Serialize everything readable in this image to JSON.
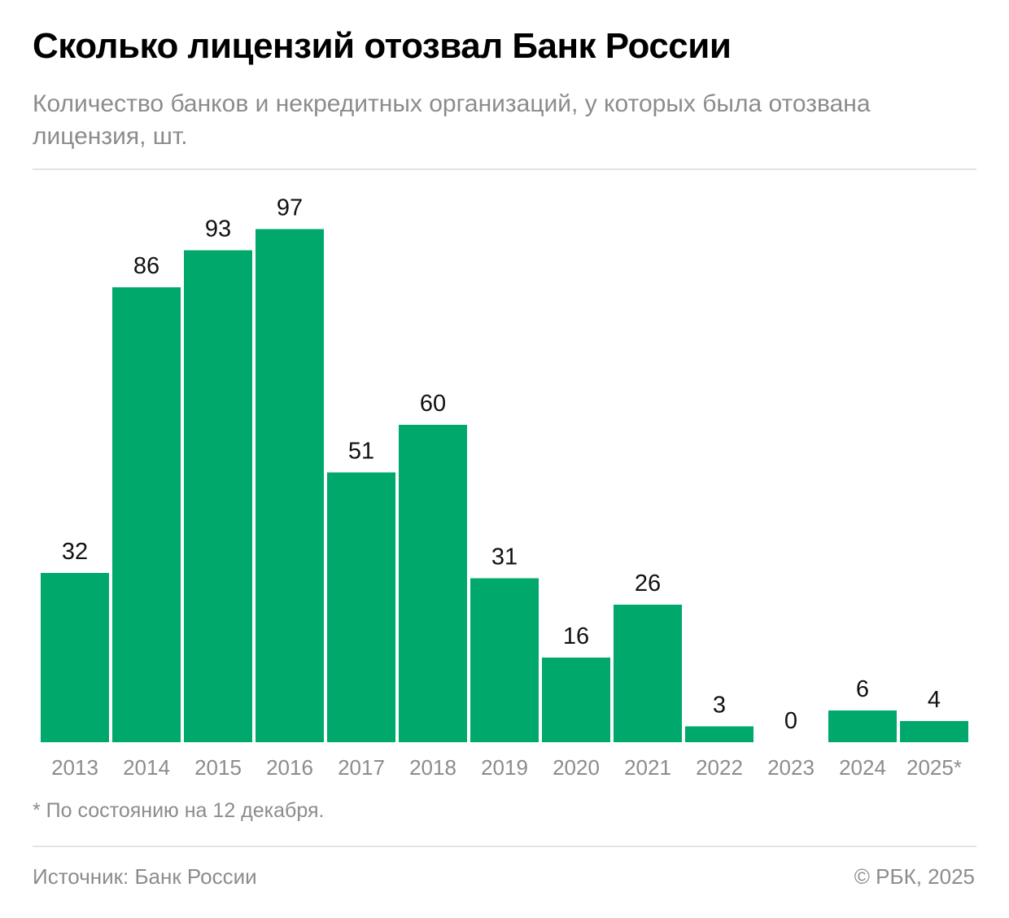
{
  "header": {
    "title": "Сколько лицензий отозвал Банк России",
    "subtitle": "Количество банков и некредитных организаций, у которых была отозвана лицензия, шт."
  },
  "chart_data": {
    "type": "bar",
    "categories": [
      "2013",
      "2014",
      "2015",
      "2016",
      "2017",
      "2018",
      "2019",
      "2020",
      "2021",
      "2022",
      "2023",
      "2024",
      "2025*"
    ],
    "values": [
      32,
      86,
      93,
      97,
      51,
      60,
      31,
      16,
      26,
      3,
      0,
      6,
      4
    ],
    "title": "Сколько лицензий отозвал Банк России",
    "xlabel": "",
    "ylabel": "",
    "ylim": [
      0,
      100
    ],
    "grid": false,
    "data_labels": true,
    "bar_color": "#00a86b"
  },
  "footer": {
    "note": "* По состоянию на 12 декабря.",
    "source": "Источник: Банк России",
    "copyright": "© РБК, 2025"
  }
}
